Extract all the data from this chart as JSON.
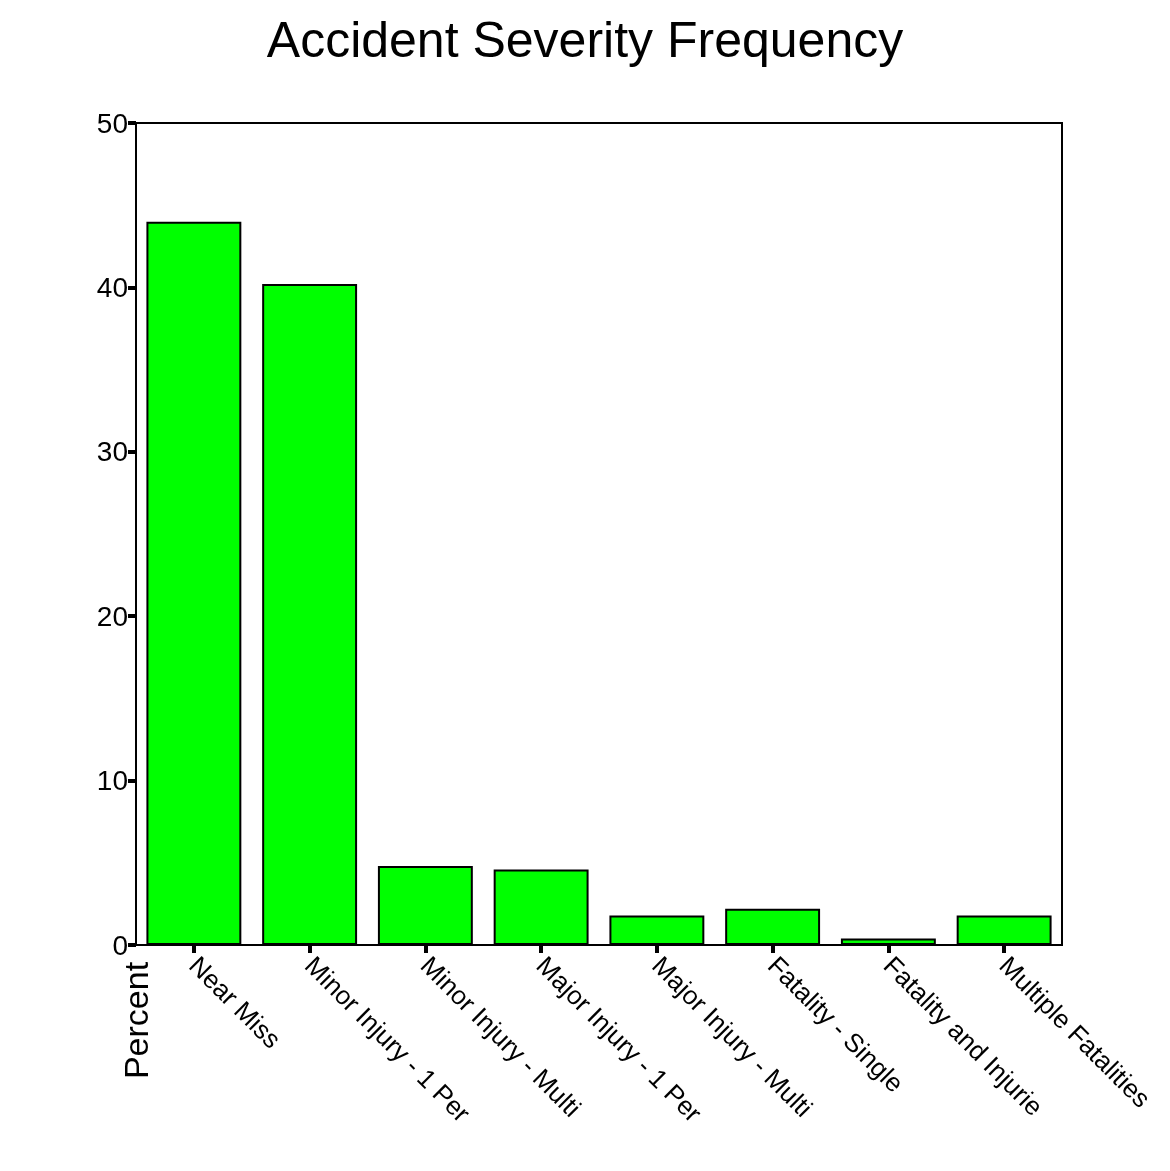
{
  "chart_data": {
    "type": "bar",
    "title": "Accident Severity Frequency",
    "ylabel": "Percent",
    "categories": [
      "Near Miss",
      "Minor Injury - 1 Per",
      "Minor Injury - Multi",
      "Major Injury - 1 Per",
      "Major Injury - Multi",
      "Fatality - Single",
      "Fatality and Injurie",
      "Multiple Fatalities"
    ],
    "values": [
      44.0,
      40.2,
      4.8,
      4.6,
      1.8,
      2.2,
      0.4,
      1.8
    ],
    "color": "#00ff00",
    "ylim": [
      0,
      50
    ],
    "yticks": [
      0,
      10,
      20,
      30,
      40,
      50
    ],
    "grid": false
  }
}
